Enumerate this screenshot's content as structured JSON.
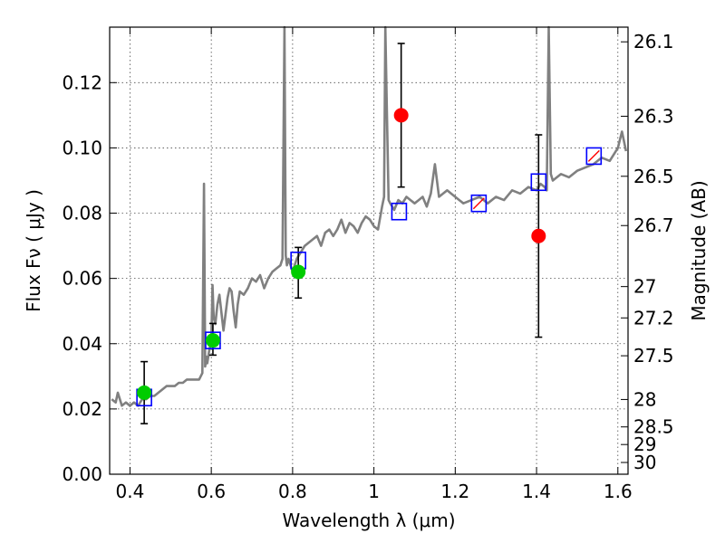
{
  "chart_data": {
    "type": "scatter",
    "xlabel": "Wavelength  λ (μm)",
    "ylabel": "Flux  Fν  ( μJy )",
    "y2label": "Magnitude (AB)",
    "xlim": [
      0.35,
      1.625
    ],
    "ylim": [
      0.0,
      0.137
    ],
    "x_ticks": [
      0.4,
      0.6,
      0.8,
      1.0,
      1.2,
      1.4,
      1.6
    ],
    "x_tick_labels": [
      "0.4",
      "0.6",
      "0.8",
      "1",
      "1.2",
      "1.4",
      "1.6"
    ],
    "y_ticks": [
      0.0,
      0.02,
      0.04,
      0.06,
      0.08,
      0.1,
      0.12
    ],
    "y_tick_labels": [
      "0.00",
      "0.02",
      "0.04",
      "0.06",
      "0.08",
      "0.10",
      "0.12"
    ],
    "y2_ticks": [
      {
        "flux": 0.1325,
        "label": "26.1"
      },
      {
        "flux": 0.1097,
        "label": "26.3"
      },
      {
        "flux": 0.0913,
        "label": "26.5"
      },
      {
        "flux": 0.0762,
        "label": "26.7"
      },
      {
        "flux": 0.0575,
        "label": "27"
      },
      {
        "flux": 0.0479,
        "label": "27.2"
      },
      {
        "flux": 0.0363,
        "label": "27.5"
      },
      {
        "flux": 0.0229,
        "label": "28"
      },
      {
        "flux": 0.0145,
        "label": "28.5"
      },
      {
        "flux": 0.0091,
        "label": "29"
      },
      {
        "flux": 0.0036,
        "label": "30"
      }
    ],
    "grid": true,
    "model_spectrum": {
      "color": "#808080",
      "x": [
        0.355,
        0.365,
        0.37,
        0.38,
        0.39,
        0.4,
        0.41,
        0.42,
        0.43,
        0.44,
        0.45,
        0.46,
        0.47,
        0.48,
        0.49,
        0.5,
        0.51,
        0.52,
        0.53,
        0.54,
        0.55,
        0.56,
        0.57,
        0.578,
        0.582,
        0.585,
        0.588,
        0.59,
        0.595,
        0.6,
        0.603,
        0.606,
        0.61,
        0.615,
        0.62,
        0.63,
        0.64,
        0.645,
        0.65,
        0.655,
        0.66,
        0.665,
        0.67,
        0.68,
        0.69,
        0.7,
        0.71,
        0.72,
        0.73,
        0.74,
        0.75,
        0.76,
        0.77,
        0.775,
        0.78,
        0.783,
        0.786,
        0.79,
        0.8,
        0.81,
        0.82,
        0.83,
        0.84,
        0.85,
        0.86,
        0.87,
        0.88,
        0.89,
        0.9,
        0.91,
        0.92,
        0.93,
        0.94,
        0.95,
        0.96,
        0.97,
        0.98,
        0.99,
        1.0,
        1.01,
        1.02,
        1.025,
        1.028,
        1.032,
        1.036,
        1.04,
        1.05,
        1.06,
        1.07,
        1.08,
        1.09,
        1.1,
        1.11,
        1.12,
        1.13,
        1.14,
        1.15,
        1.16,
        1.17,
        1.18,
        1.19,
        1.2,
        1.22,
        1.24,
        1.26,
        1.28,
        1.3,
        1.32,
        1.34,
        1.36,
        1.38,
        1.4,
        1.41,
        1.42,
        1.425,
        1.43,
        1.435,
        1.44,
        1.45,
        1.46,
        1.48,
        1.5,
        1.52,
        1.54,
        1.56,
        1.58,
        1.6,
        1.61,
        1.62
      ],
      "y": [
        0.023,
        0.022,
        0.025,
        0.021,
        0.022,
        0.021,
        0.022,
        0.021,
        0.023,
        0.023,
        0.024,
        0.024,
        0.025,
        0.026,
        0.027,
        0.027,
        0.027,
        0.028,
        0.028,
        0.029,
        0.029,
        0.029,
        0.029,
        0.031,
        0.089,
        0.033,
        0.036,
        0.034,
        0.038,
        0.041,
        0.058,
        0.048,
        0.046,
        0.052,
        0.055,
        0.044,
        0.054,
        0.057,
        0.056,
        0.05,
        0.045,
        0.052,
        0.056,
        0.055,
        0.057,
        0.06,
        0.059,
        0.061,
        0.057,
        0.06,
        0.062,
        0.063,
        0.064,
        0.066,
        0.14,
        0.067,
        0.064,
        0.066,
        0.062,
        0.066,
        0.068,
        0.07,
        0.071,
        0.072,
        0.073,
        0.07,
        0.074,
        0.075,
        0.073,
        0.075,
        0.078,
        0.074,
        0.077,
        0.076,
        0.074,
        0.077,
        0.079,
        0.078,
        0.076,
        0.075,
        0.082,
        0.085,
        0.14,
        0.11,
        0.084,
        0.083,
        0.081,
        0.084,
        0.083,
        0.085,
        0.084,
        0.083,
        0.084,
        0.085,
        0.082,
        0.086,
        0.095,
        0.085,
        0.086,
        0.087,
        0.086,
        0.085,
        0.083,
        0.084,
        0.085,
        0.083,
        0.085,
        0.084,
        0.087,
        0.086,
        0.088,
        0.087,
        0.089,
        0.088,
        0.087,
        0.14,
        0.092,
        0.09,
        0.091,
        0.092,
        0.091,
        0.093,
        0.094,
        0.095,
        0.097,
        0.096,
        0.1,
        0.105,
        0.099
      ]
    },
    "series": [
      {
        "marker": "open-square",
        "color": "#0000ff",
        "x": [
          0.435,
          0.604,
          0.814,
          1.062,
          1.258,
          1.405,
          1.541
        ],
        "y": [
          0.0235,
          0.041,
          0.0655,
          0.0805,
          0.083,
          0.0895,
          0.0975
        ]
      },
      {
        "marker": "filled-circle",
        "color": "#00cc00",
        "x": [
          0.435,
          0.604,
          0.814
        ],
        "y": [
          0.025,
          0.041,
          0.062
        ],
        "yerr_low": [
          0.0155,
          0.0365,
          0.054
        ],
        "yerr_high": [
          0.0345,
          0.0462,
          0.0695
        ]
      },
      {
        "marker": "filled-circle",
        "color": "#ff0000",
        "x": [
          1.067,
          1.405
        ],
        "y": [
          0.11,
          0.073
        ],
        "yerr_low": [
          0.088,
          0.042
        ],
        "yerr_high": [
          0.132,
          0.104
        ]
      },
      {
        "marker": "slash-line",
        "color": "#ff0000",
        "x": [
          1.258,
          1.541
        ],
        "y": [
          0.083,
          0.0975
        ]
      }
    ]
  }
}
